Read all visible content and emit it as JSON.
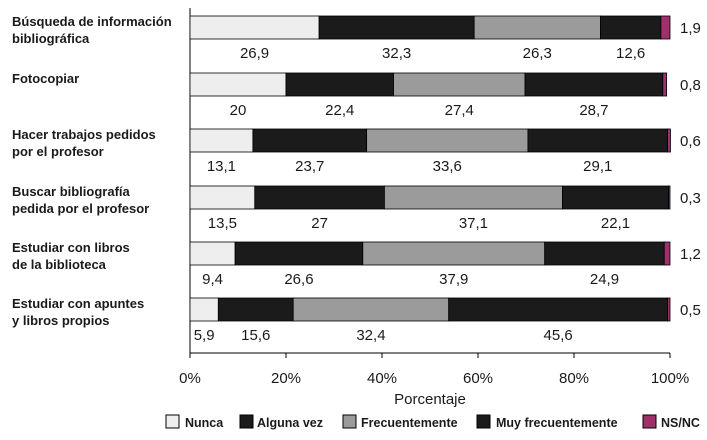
{
  "chart_data": {
    "type": "bar",
    "orientation": "horizontal",
    "stacked": true,
    "categories": [
      [
        "Búsqueda de información",
        "bibliográfica"
      ],
      [
        "Fotocopiar"
      ],
      [
        "Hacer trabajos pedidos",
        "por el profesor"
      ],
      [
        "Buscar bibliografía",
        "pedida por el profesor"
      ],
      [
        "Estudiar con libros",
        "de la biblioteca"
      ],
      [
        "Estudiar con apuntes",
        "y libros propios"
      ]
    ],
    "series": [
      {
        "name": "Nunca",
        "color": "#eeeeee",
        "values": [
          26.9,
          20,
          13.1,
          13.5,
          9.4,
          5.9
        ]
      },
      {
        "name": "Alguna vez",
        "color": "#1b1b1b",
        "values": [
          32.3,
          22.4,
          23.7,
          27,
          26.6,
          15.6
        ]
      },
      {
        "name": "Frecuentemente",
        "color": "#9b9b9b",
        "values": [
          26.3,
          27.4,
          33.6,
          37.1,
          37.9,
          32.4
        ]
      },
      {
        "name": "Muy frecuentemente",
        "color": "#1b1b1b",
        "values": [
          12.6,
          28.7,
          29.1,
          22.1,
          24.9,
          45.6
        ]
      },
      {
        "name": "NS/NC",
        "color": "#a0306a",
        "values": [
          1.9,
          0.8,
          0.6,
          0.3,
          1.2,
          0.5
        ]
      }
    ],
    "value_labels": [
      [
        "26,9",
        "32,3",
        "26,3",
        "12,6",
        "1,9"
      ],
      [
        "20",
        "22,4",
        "27,4",
        "28,7",
        "0,8"
      ],
      [
        "13,1",
        "23,7",
        "33,6",
        "29,1",
        "0,6"
      ],
      [
        "13,5",
        "27",
        "37,1",
        "22,1",
        "0,3"
      ],
      [
        "9,4",
        "26,6",
        "37,9",
        "24,9",
        "1,2"
      ],
      [
        "5,9",
        "15,6",
        "32,4",
        "45,6",
        "0,5"
      ]
    ],
    "xlim": [
      0,
      100
    ],
    "xticks": [
      "0%",
      "20%",
      "40%",
      "60%",
      "80%",
      "100%"
    ],
    "xlabel": "Porcentaje",
    "ylabel": "",
    "title": "",
    "grid": false,
    "legend_position": "bottom"
  }
}
